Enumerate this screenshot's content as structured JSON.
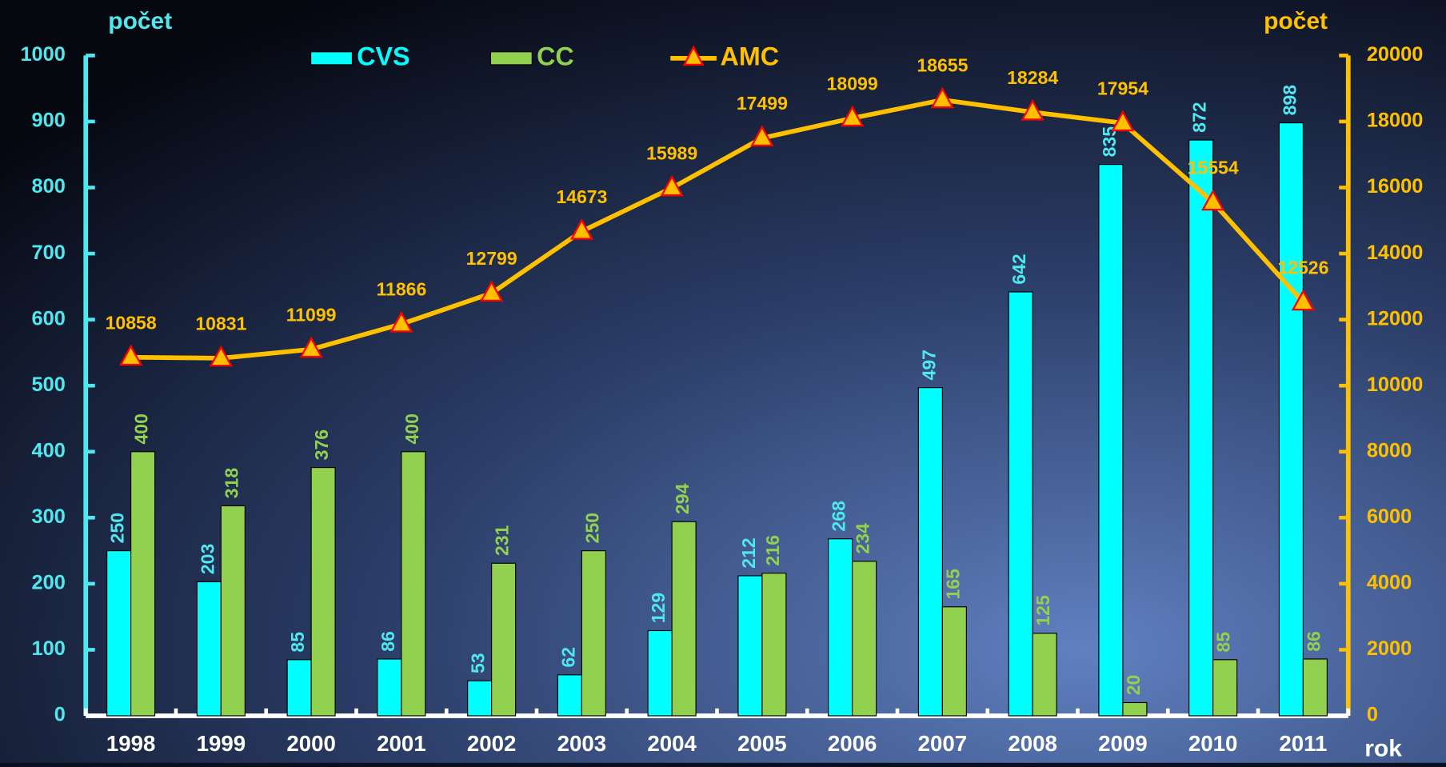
{
  "chart_data": {
    "type": "bar",
    "categories": [
      "1998",
      "1999",
      "2000",
      "2001",
      "2002",
      "2003",
      "2004",
      "2005",
      "2006",
      "2007",
      "2008",
      "2009",
      "2010",
      "2011"
    ],
    "series": [
      {
        "name": "CVS",
        "color": "#00ffff",
        "values": [
          250,
          203,
          85,
          86,
          53,
          62,
          129,
          212,
          268,
          497,
          642,
          835,
          872,
          898
        ]
      },
      {
        "name": "CC",
        "color": "#92d050",
        "values": [
          400,
          318,
          376,
          400,
          231,
          250,
          294,
          216,
          234,
          165,
          125,
          20,
          85,
          86
        ]
      },
      {
        "name": "AMC",
        "type": "line",
        "axis": "y2",
        "color": "#ffc000",
        "values": [
          10858,
          10831,
          11099,
          11866,
          12799,
          14673,
          15989,
          17499,
          18099,
          18655,
          18284,
          17954,
          15554,
          12526
        ]
      }
    ],
    "y_label": "počet",
    "y2_label": "počet",
    "x_label": "rok",
    "ylim": [
      0,
      1000
    ],
    "yticks": [
      0,
      100,
      200,
      300,
      400,
      500,
      600,
      700,
      800,
      900,
      1000
    ],
    "y2lim": [
      0,
      20000
    ],
    "y2ticks": [
      0,
      2000,
      4000,
      6000,
      8000,
      10000,
      12000,
      14000,
      16000,
      18000,
      20000
    ]
  }
}
